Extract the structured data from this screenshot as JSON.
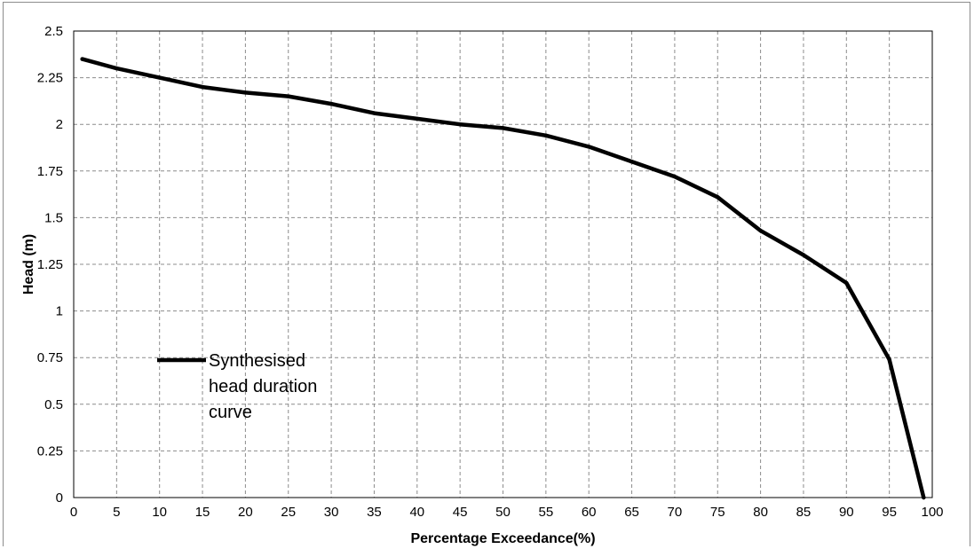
{
  "chart_data": {
    "type": "line",
    "title": "",
    "xlabel": "Percentage Exceedance(%)",
    "ylabel": "Head (m)",
    "xlim": [
      0,
      100
    ],
    "ylim": [
      0,
      2.5
    ],
    "x_ticks": [
      "0",
      "5",
      "10",
      "15",
      "20",
      "25",
      "30",
      "35",
      "40",
      "45",
      "50",
      "55",
      "60",
      "65",
      "70",
      "75",
      "80",
      "85",
      "90",
      "95",
      "100"
    ],
    "y_ticks": [
      "0",
      "0.25",
      "0.5",
      "0.75",
      "1",
      "1.25",
      "1.5",
      "1.75",
      "2",
      "2.25",
      "2.5"
    ],
    "grid": true,
    "legend_position": "left-middle",
    "series": [
      {
        "name": "Synthesised head duration curve",
        "color": "#000000",
        "x": [
          1,
          5,
          10,
          15,
          20,
          25,
          30,
          35,
          40,
          45,
          50,
          55,
          60,
          65,
          70,
          75,
          80,
          85,
          90,
          95,
          99
        ],
        "y": [
          2.35,
          2.3,
          2.25,
          2.2,
          2.17,
          2.15,
          2.11,
          2.06,
          2.03,
          2.0,
          1.98,
          1.94,
          1.88,
          1.8,
          1.72,
          1.61,
          1.43,
          1.3,
          1.15,
          0.74,
          0.0
        ]
      }
    ],
    "legend": {
      "lines": [
        "Synthesised",
        "head duration",
        "curve"
      ]
    }
  }
}
